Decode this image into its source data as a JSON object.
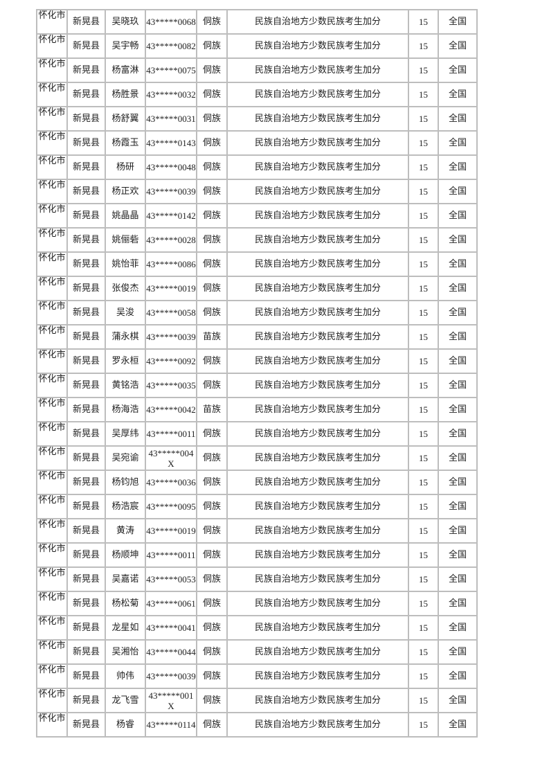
{
  "table": {
    "rows": [
      {
        "city": "怀化市",
        "county": "新晃县",
        "name": "吴晓玖",
        "id": "43*****0068",
        "ethnicity": "侗族",
        "reason": "民族自治地方少数民族考生加分",
        "points": "15",
        "scope": "全国"
      },
      {
        "city": "怀化市",
        "county": "新晃县",
        "name": "吴宇畅",
        "id": "43*****0082",
        "ethnicity": "侗族",
        "reason": "民族自治地方少数民族考生加分",
        "points": "15",
        "scope": "全国"
      },
      {
        "city": "怀化市",
        "county": "新晃县",
        "name": "杨富淋",
        "id": "43*****0075",
        "ethnicity": "侗族",
        "reason": "民族自治地方少数民族考生加分",
        "points": "15",
        "scope": "全国"
      },
      {
        "city": "怀化市",
        "county": "新晃县",
        "name": "杨胜景",
        "id": "43*****0032",
        "ethnicity": "侗族",
        "reason": "民族自治地方少数民族考生加分",
        "points": "15",
        "scope": "全国"
      },
      {
        "city": "怀化市",
        "county": "新晃县",
        "name": "杨舒翼",
        "id": "43*****0031",
        "ethnicity": "侗族",
        "reason": "民族自治地方少数民族考生加分",
        "points": "15",
        "scope": "全国"
      },
      {
        "city": "怀化市",
        "county": "新晃县",
        "name": "杨霞玉",
        "id": "43*****0143",
        "ethnicity": "侗族",
        "reason": "民族自治地方少数民族考生加分",
        "points": "15",
        "scope": "全国"
      },
      {
        "city": "怀化市",
        "county": "新晃县",
        "name": "杨研",
        "id": "43*****0048",
        "ethnicity": "侗族",
        "reason": "民族自治地方少数民族考生加分",
        "points": "15",
        "scope": "全国"
      },
      {
        "city": "怀化市",
        "county": "新晃县",
        "name": "杨正欢",
        "id": "43*****0039",
        "ethnicity": "侗族",
        "reason": "民族自治地方少数民族考生加分",
        "points": "15",
        "scope": "全国"
      },
      {
        "city": "怀化市",
        "county": "新晃县",
        "name": "姚晶晶",
        "id": "43*****0142",
        "ethnicity": "侗族",
        "reason": "民族自治地方少数民族考生加分",
        "points": "15",
        "scope": "全国"
      },
      {
        "city": "怀化市",
        "county": "新晃县",
        "name": "姚俪砦",
        "id": "43*****0028",
        "ethnicity": "侗族",
        "reason": "民族自治地方少数民族考生加分",
        "points": "15",
        "scope": "全国"
      },
      {
        "city": "怀化市",
        "county": "新晃县",
        "name": "姚怡菲",
        "id": "43*****0086",
        "ethnicity": "侗族",
        "reason": "民族自治地方少数民族考生加分",
        "points": "15",
        "scope": "全国"
      },
      {
        "city": "怀化市",
        "county": "新晃县",
        "name": "张俊杰",
        "id": "43*****0019",
        "ethnicity": "侗族",
        "reason": "民族自治地方少数民族考生加分",
        "points": "15",
        "scope": "全国"
      },
      {
        "city": "怀化市",
        "county": "新晃县",
        "name": "吴浚",
        "id": "43*****0058",
        "ethnicity": "侗族",
        "reason": "民族自治地方少数民族考生加分",
        "points": "15",
        "scope": "全国"
      },
      {
        "city": "怀化市",
        "county": "新晃县",
        "name": "蒲永棋",
        "id": "43*****0039",
        "ethnicity": "苗族",
        "reason": "民族自治地方少数民族考生加分",
        "points": "15",
        "scope": "全国"
      },
      {
        "city": "怀化市",
        "county": "新晃县",
        "name": "罗永桓",
        "id": "43*****0092",
        "ethnicity": "侗族",
        "reason": "民族自治地方少数民族考生加分",
        "points": "15",
        "scope": "全国"
      },
      {
        "city": "怀化市",
        "county": "新晃县",
        "name": "黄铭浩",
        "id": "43*****0035",
        "ethnicity": "侗族",
        "reason": "民族自治地方少数民族考生加分",
        "points": "15",
        "scope": "全国"
      },
      {
        "city": "怀化市",
        "county": "新晃县",
        "name": "杨海浩",
        "id": "43*****0042",
        "ethnicity": "苗族",
        "reason": "民族自治地方少数民族考生加分",
        "points": "15",
        "scope": "全国"
      },
      {
        "city": "怀化市",
        "county": "新晃县",
        "name": "吴厚纬",
        "id": "43*****0011",
        "ethnicity": "侗族",
        "reason": "民族自治地方少数民族考生加分",
        "points": "15",
        "scope": "全国"
      },
      {
        "city": "怀化市",
        "county": "新晃县",
        "name": "吴宛谕",
        "id": "43*****004X",
        "ethnicity": "侗族",
        "reason": "民族自治地方少数民族考生加分",
        "points": "15",
        "scope": "全国"
      },
      {
        "city": "怀化市",
        "county": "新晃县",
        "name": "杨钧旭",
        "id": "43*****0036",
        "ethnicity": "侗族",
        "reason": "民族自治地方少数民族考生加分",
        "points": "15",
        "scope": "全国"
      },
      {
        "city": "怀化市",
        "county": "新晃县",
        "name": "杨浩宸",
        "id": "43*****0095",
        "ethnicity": "侗族",
        "reason": "民族自治地方少数民族考生加分",
        "points": "15",
        "scope": "全国"
      },
      {
        "city": "怀化市",
        "county": "新晃县",
        "name": "黄涛",
        "id": "43*****0019",
        "ethnicity": "侗族",
        "reason": "民族自治地方少数民族考生加分",
        "points": "15",
        "scope": "全国"
      },
      {
        "city": "怀化市",
        "county": "新晃县",
        "name": "杨顺坤",
        "id": "43*****0011",
        "ethnicity": "侗族",
        "reason": "民族自治地方少数民族考生加分",
        "points": "15",
        "scope": "全国"
      },
      {
        "city": "怀化市",
        "county": "新晃县",
        "name": "吴嘉诺",
        "id": "43*****0053",
        "ethnicity": "侗族",
        "reason": "民族自治地方少数民族考生加分",
        "points": "15",
        "scope": "全国"
      },
      {
        "city": "怀化市",
        "county": "新晃县",
        "name": "杨松菊",
        "id": "43*****0061",
        "ethnicity": "侗族",
        "reason": "民族自治地方少数民族考生加分",
        "points": "15",
        "scope": "全国"
      },
      {
        "city": "怀化市",
        "county": "新晃县",
        "name": "龙星如",
        "id": "43*****0041",
        "ethnicity": "侗族",
        "reason": "民族自治地方少数民族考生加分",
        "points": "15",
        "scope": "全国"
      },
      {
        "city": "怀化市",
        "county": "新晃县",
        "name": "吴湘怡",
        "id": "43*****0044",
        "ethnicity": "侗族",
        "reason": "民族自治地方少数民族考生加分",
        "points": "15",
        "scope": "全国"
      },
      {
        "city": "怀化市",
        "county": "新晃县",
        "name": "帅伟",
        "id": "43*****0039",
        "ethnicity": "侗族",
        "reason": "民族自治地方少数民族考生加分",
        "points": "15",
        "scope": "全国"
      },
      {
        "city": "怀化市",
        "county": "新晃县",
        "name": "龙飞雪",
        "id": "43*****001X",
        "ethnicity": "侗族",
        "reason": "民族自治地方少数民族考生加分",
        "points": "15",
        "scope": "全国"
      },
      {
        "city": "怀化市",
        "county": "新晃县",
        "name": "杨睿",
        "id": "43*****0114",
        "ethnicity": "侗族",
        "reason": "民族自治地方少数民族考生加分",
        "points": "15",
        "scope": "全国"
      }
    ]
  }
}
